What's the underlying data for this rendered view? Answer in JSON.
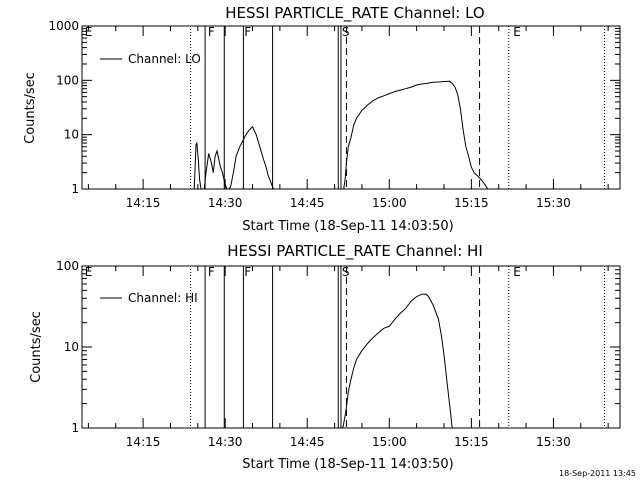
{
  "footer_stamp": "18-Sep-2011 13:45",
  "chart_data": [
    {
      "type": "line",
      "title": "HESSI PARTICLE_RATE Channel: LO",
      "xlabel": "Start Time (18-Sep-11 14:03:50)",
      "ylabel": "Counts/sec",
      "yscale": "log",
      "ylim": [
        1,
        1000
      ],
      "xlim": [
        "14:03:50",
        "15:42:10"
      ],
      "xticks": [
        "14:15",
        "14:30",
        "14:45",
        "15:00",
        "15:15",
        "15:30"
      ],
      "yticks": [
        "1",
        "10",
        "100",
        "1000"
      ],
      "legend": {
        "position": "top-left",
        "label": "Channel: LO"
      },
      "grid": false,
      "series": [
        {
          "name": "Channel: LO",
          "x": [
            "14:24:20",
            "14:24:30",
            "14:24:40",
            "14:24:50",
            "14:25:05",
            "14:25:20",
            "14:25:35",
            "14:25:50",
            "14:26:10",
            "14:26:30",
            "14:27:00",
            "14:27:30",
            "14:27:50",
            "14:28:10",
            "14:28:30",
            "14:28:50",
            "14:29:10",
            "14:29:30",
            "14:30:00",
            "14:30:20",
            "14:30:40",
            "14:31:00",
            "14:31:30",
            "14:32:00",
            "14:32:40",
            "14:33:10",
            "14:33:40",
            "14:34:20",
            "14:35:00",
            "14:35:40",
            "14:36:20",
            "14:37:00",
            "14:37:30",
            "14:37:50",
            "14:38:10",
            "14:38:30",
            "14:38:50",
            "14:39:10",
            "14:51:40",
            "14:51:55",
            "14:52:10",
            "14:52:30",
            "14:53:00",
            "14:53:30",
            "14:54:00",
            "14:55:00",
            "14:56:00",
            "14:57:00",
            "14:58:00",
            "14:59:00",
            "15:00:00",
            "15:01:00",
            "15:02:00",
            "15:03:00",
            "15:04:00",
            "15:05:00",
            "15:06:00",
            "15:07:00",
            "15:08:00",
            "15:09:00",
            "15:10:00",
            "15:11:00",
            "15:11:30",
            "15:12:00",
            "15:12:30",
            "15:13:00",
            "15:13:30",
            "15:14:00",
            "15:14:30",
            "15:15:00",
            "15:15:30",
            "15:16:00",
            "15:16:30",
            "15:17:00",
            "15:17:30",
            "15:18:00"
          ],
          "y": [
            1.0,
            2.5,
            6.5,
            7.0,
            3.5,
            1.5,
            1.0,
            1.0,
            1.0,
            2.0,
            4.5,
            3.0,
            2.0,
            4.0,
            5.0,
            3.5,
            2.5,
            2.0,
            1.2,
            1.0,
            1.0,
            1.1,
            2.0,
            4.0,
            6.0,
            7.5,
            9.5,
            12.0,
            14.0,
            10.0,
            6.0,
            3.5,
            2.5,
            1.8,
            1.5,
            1.2,
            1.0,
            1.0,
            1.0,
            1.5,
            3.0,
            6.0,
            9.0,
            15.0,
            20.0,
            28.0,
            35.0,
            42.0,
            48.0,
            52.0,
            57.0,
            62.0,
            66.0,
            70.0,
            75.0,
            82.0,
            86.0,
            88.0,
            92.0,
            93.0,
            95.0,
            96.0,
            88.0,
            75.0,
            55.0,
            30.0,
            12.0,
            6.0,
            4.0,
            2.5,
            2.0,
            1.8,
            1.6,
            1.4,
            1.2,
            1.0
          ],
          "breaks_after_index": [
            37
          ]
        }
      ],
      "annotations": {
        "labels": [
          {
            "text": "E",
            "x": "14:04:20"
          },
          {
            "text": "F",
            "x": "14:26:50"
          },
          {
            "text": "F",
            "x": "14:33:30"
          },
          {
            "text": "S",
            "x": "14:51:20"
          },
          {
            "text": "E",
            "x": "15:22:40"
          }
        ],
        "solid_lines": [
          "14:26:20",
          "14:29:50",
          "14:33:20",
          "14:38:40",
          "14:50:40",
          "14:51:10"
        ],
        "dashed_lines": [
          "14:52:10",
          "15:16:30"
        ],
        "dotted_lines": [
          "14:23:40",
          "15:21:50",
          "15:39:20"
        ]
      }
    },
    {
      "type": "line",
      "title": "HESSI PARTICLE_RATE Channel: HI",
      "xlabel": "Start Time (18-Sep-11 14:03:50)",
      "ylabel": "Counts/sec",
      "yscale": "log",
      "ylim": [
        1,
        100
      ],
      "xlim": [
        "14:03:50",
        "15:42:10"
      ],
      "xticks": [
        "14:15",
        "14:30",
        "14:45",
        "15:00",
        "15:15",
        "15:30"
      ],
      "yticks": [
        "1",
        "10",
        "100"
      ],
      "legend": {
        "position": "top-left",
        "label": "Channel: HI"
      },
      "grid": false,
      "series": [
        {
          "name": "Channel: HI",
          "x": [
            "14:51:30",
            "14:51:50",
            "14:52:10",
            "14:52:30",
            "14:53:00",
            "14:53:30",
            "14:54:00",
            "14:55:00",
            "14:56:00",
            "14:57:00",
            "14:58:00",
            "14:59:00",
            "15:00:00",
            "15:01:00",
            "15:02:00",
            "15:03:00",
            "15:04:00",
            "15:05:00",
            "15:06:00",
            "15:06:40",
            "15:07:10",
            "15:08:00",
            "15:09:00",
            "15:09:30",
            "15:10:00",
            "15:10:30",
            "15:11:00",
            "15:11:30"
          ],
          "y": [
            1.0,
            1.3,
            1.8,
            2.8,
            4.0,
            5.5,
            7.0,
            9.0,
            11.0,
            13.0,
            15.0,
            17.0,
            18.0,
            22.0,
            26.0,
            30.0,
            37.0,
            42.0,
            45.0,
            45.0,
            42.0,
            33.0,
            22.0,
            14.0,
            8.0,
            4.0,
            2.0,
            1.0
          ]
        }
      ],
      "annotations": {
        "labels": [
          {
            "text": "E",
            "x": "14:04:20"
          },
          {
            "text": "F",
            "x": "14:26:50"
          },
          {
            "text": "F",
            "x": "14:33:30"
          },
          {
            "text": "S",
            "x": "14:51:20"
          },
          {
            "text": "E",
            "x": "15:22:40"
          }
        ],
        "solid_lines": [
          "14:26:20",
          "14:29:50",
          "14:33:20",
          "14:38:40",
          "14:50:40",
          "14:51:10"
        ],
        "dashed_lines": [
          "14:52:10",
          "15:16:30"
        ],
        "dotted_lines": [
          "14:23:40",
          "15:21:50",
          "15:39:20"
        ]
      }
    }
  ]
}
